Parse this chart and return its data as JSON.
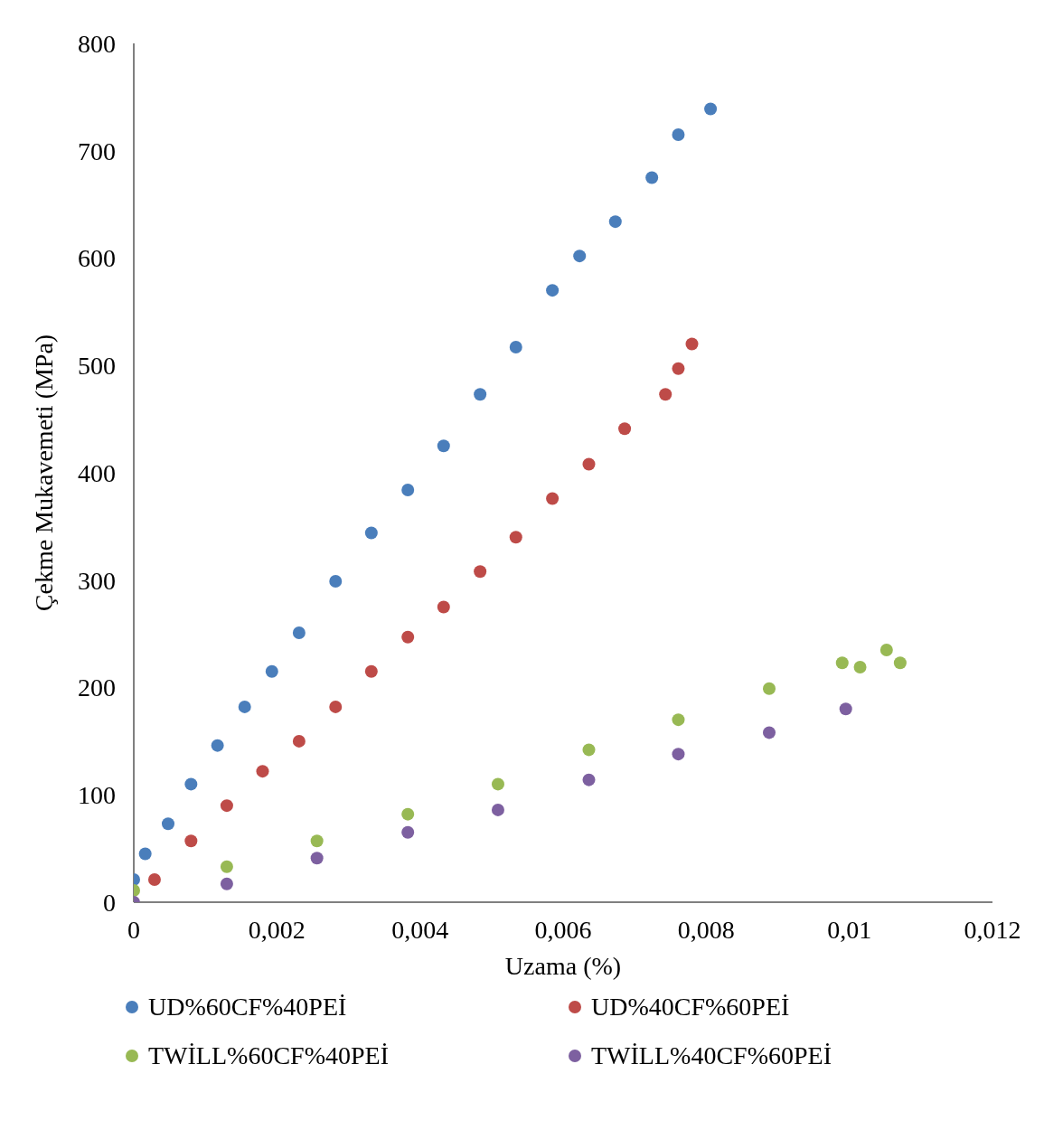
{
  "chart_data": {
    "type": "scatter",
    "xlabel": "Uzama (%)",
    "ylabel": "Çekme Mukavemeti (MPa)",
    "xlim": [
      0,
      0.012
    ],
    "xticks": [
      0,
      {
        "value": 0.002,
        "label": "0,002"
      },
      {
        "value": 0.004,
        "label": "0,004"
      },
      {
        "value": 0.006,
        "label": "0,006"
      },
      {
        "value": 0.008,
        "label": "0,008"
      },
      {
        "value": 0.01,
        "label": "0,01"
      },
      {
        "value": 0.012,
        "label": "0,012"
      }
    ],
    "ylim": [
      0,
      800
    ],
    "yticks": [
      0,
      100,
      200,
      300,
      400,
      500,
      600,
      700,
      800
    ],
    "grid": false,
    "legend": "bottom",
    "marker": "circle",
    "series": [
      {
        "name": "UD%60CF%40PEİ",
        "color": "#4a7ebb",
        "x": [
          0,
          0.00016,
          0.00048,
          0.0008,
          0.00117,
          0.00155,
          0.00193,
          0.00231,
          0.00282,
          0.00332,
          0.00383,
          0.00433,
          0.00484,
          0.00534,
          0.00585,
          0.00623,
          0.00673,
          0.00724,
          0.00761,
          0.00806
        ],
        "values": [
          21,
          45,
          73,
          110,
          146,
          182,
          215,
          251,
          299,
          344,
          384,
          425,
          473,
          517,
          570,
          602,
          634,
          675,
          715,
          739
        ]
      },
      {
        "name": "UD%40CF%60PEİ",
        "color": "#be4b48",
        "x": [
          0.00029,
          0.0008,
          0.0013,
          0.0018,
          0.00231,
          0.00282,
          0.00332,
          0.00383,
          0.00433,
          0.00484,
          0.00534,
          0.00585,
          0.00636,
          0.00686,
          0.00743,
          0.00761,
          0.0078
        ],
        "values": [
          21,
          57,
          90,
          122,
          150,
          182,
          215,
          247,
          275,
          308,
          340,
          376,
          408,
          441,
          473,
          497,
          520
        ]
      },
      {
        "name": "TWİLL%60CF%40PEİ",
        "color": "#98b954",
        "x": [
          0,
          0.0013,
          0.00256,
          0.00383,
          0.00509,
          0.00636,
          0.00761,
          0.00888,
          0.0099,
          0.01015,
          0.01052,
          0.01071
        ],
        "values": [
          11,
          33,
          57,
          82,
          110,
          142,
          170,
          199,
          223,
          219,
          235,
          223
        ]
      },
      {
        "name": "TWİLL%40CF%60PEİ",
        "color": "#7d60a0",
        "x": [
          0,
          0.0013,
          0.00256,
          0.00383,
          0.00509,
          0.00636,
          0.00761,
          0.00888,
          0.00995
        ],
        "values": [
          0,
          17,
          41,
          65,
          86,
          114,
          138,
          158,
          180
        ]
      }
    ]
  }
}
